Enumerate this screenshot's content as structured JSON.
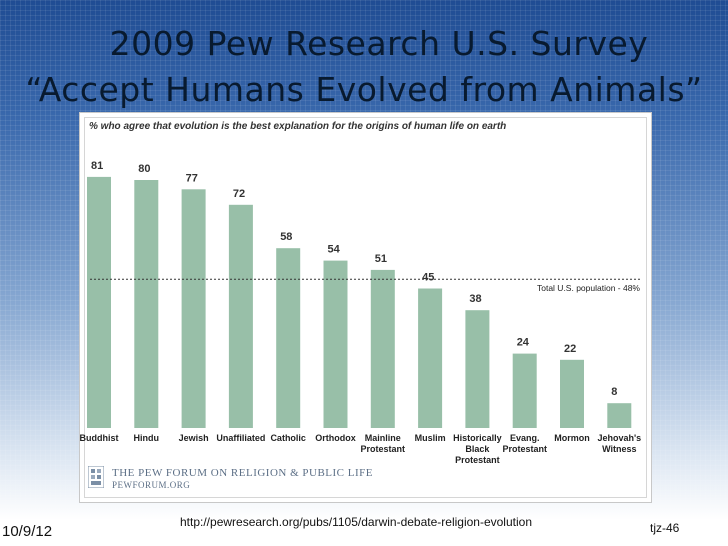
{
  "slide": {
    "title_line1": "2009 Pew Research U.S. Survey",
    "title_line2": "“Accept Humans Evolved from Animals”",
    "url": "http://pewresearch.org/pubs/1105/darwin-debate-religion-evolution",
    "date": "10/9/12",
    "page_code": "tjz-46"
  },
  "logo": {
    "name": "The Pew Forum on Religion & Public Life",
    "site": "pewforum.org"
  },
  "colors": {
    "bar": "#98bfa8",
    "title": "#081a2f",
    "background_top": "#1f4c93"
  },
  "chart_data": {
    "type": "bar",
    "title": "% who agree that evolution is the best explanation for the origins of human life on earth",
    "categories": [
      [
        "Buddhist"
      ],
      [
        "Hindu"
      ],
      [
        "Jewish"
      ],
      [
        "Unaffiliated"
      ],
      [
        "Catholic"
      ],
      [
        "Orthodox"
      ],
      [
        "Mainline",
        "Protestant"
      ],
      [
        "Muslim"
      ],
      [
        "Historically",
        "Black",
        "Protestant"
      ],
      [
        "Evang.",
        "Protestant"
      ],
      [
        "Mormon"
      ],
      [
        "Jehovah's",
        "Witness"
      ]
    ],
    "values": [
      81,
      80,
      77,
      72,
      58,
      54,
      51,
      45,
      38,
      24,
      22,
      8
    ],
    "reference_line": {
      "value": 48,
      "label": "Total U.S. population - 48%"
    },
    "ylim": [
      0,
      100
    ],
    "xlabel": "",
    "ylabel": "",
    "grid": false
  }
}
